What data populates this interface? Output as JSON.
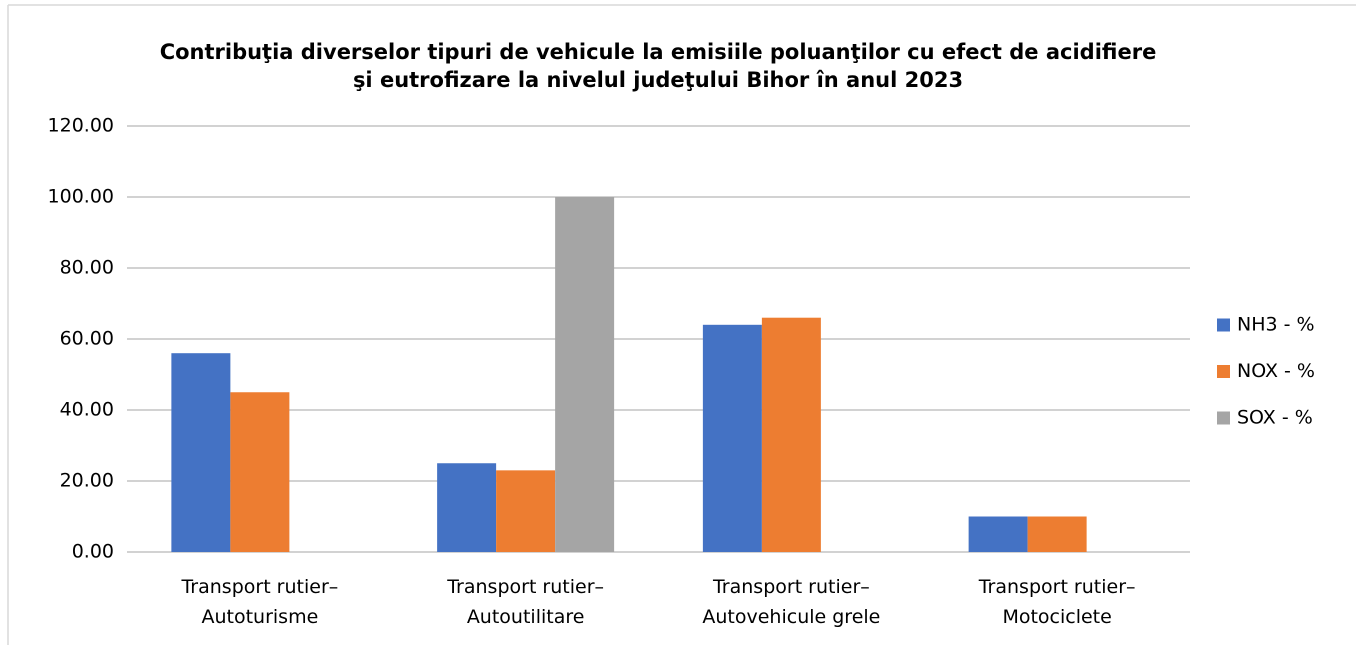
{
  "chart_data": {
    "type": "bar",
    "title": "Contribuţia diverselor tipuri de vehicule la emisiile poluanţilor cu efect de acidifiere\nşi eutrofizare la nivelul judeţului Bihor în anul 2023",
    "categories": [
      "Transport rutier–\nAutoturisme",
      "Transport rutier–\nAutoutilitare",
      "Transport rutier–\nAutovehicule grele",
      "Transport rutier–\nMotociclete"
    ],
    "series": [
      {
        "name": "NH3 - %",
        "color": "#4472c4",
        "values": [
          56,
          25,
          64,
          10
        ]
      },
      {
        "name": "NOX - %",
        "color": "#ed7d31",
        "values": [
          45,
          23,
          66,
          10
        ]
      },
      {
        "name": "SOX - %",
        "color": "#a5a5a5",
        "values": [
          null,
          100,
          null,
          null
        ]
      }
    ],
    "ylim": [
      0,
      120
    ],
    "yticks": [
      {
        "value": 0,
        "label": "0.00"
      },
      {
        "value": 20,
        "label": "20.00"
      },
      {
        "value": 40,
        "label": "40.00"
      },
      {
        "value": 60,
        "label": "60.00"
      },
      {
        "value": 80,
        "label": "80.00"
      },
      {
        "value": 100,
        "label": "100.00"
      },
      {
        "value": 120,
        "label": "120.00"
      }
    ],
    "grid": true,
    "legend": "right"
  }
}
